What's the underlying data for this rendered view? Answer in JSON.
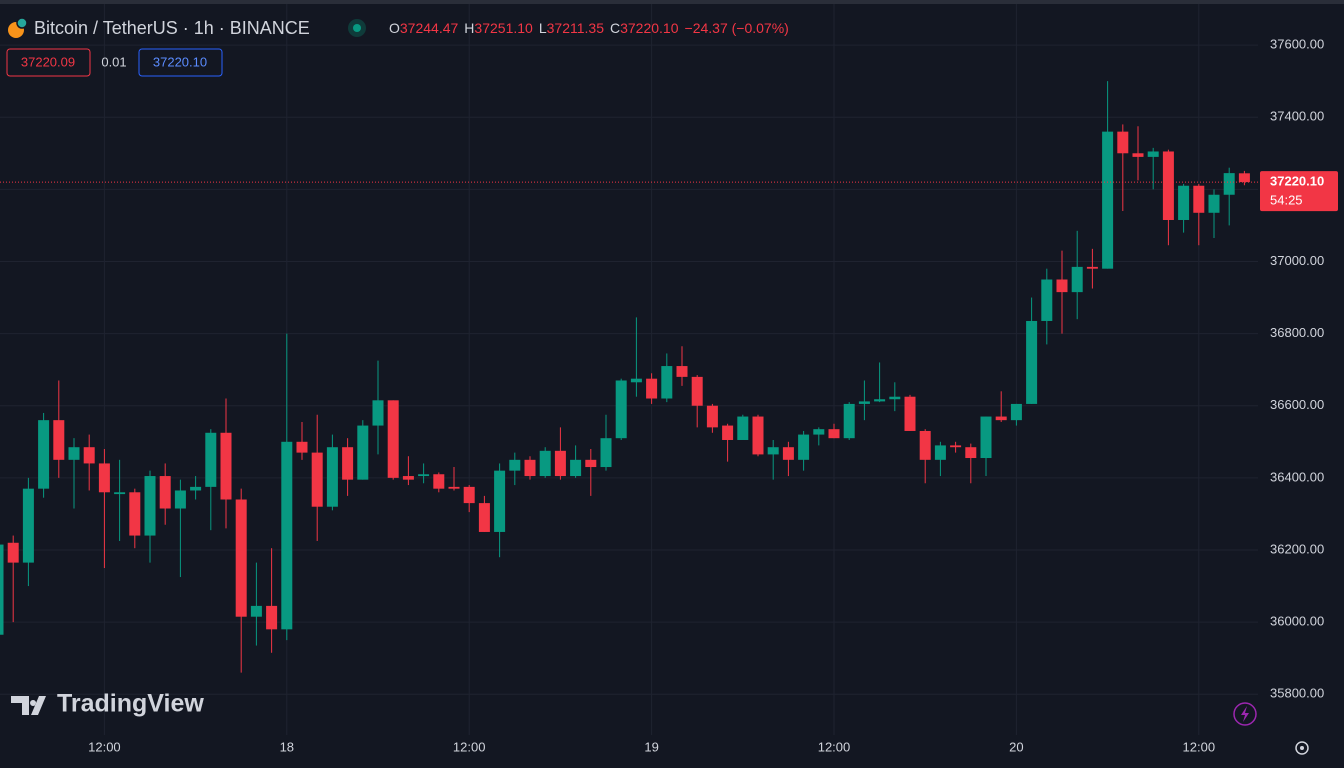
{
  "header": {
    "symbol": "Bitcoin / TetherUS · 1h · BINANCE",
    "ohlc": [
      {
        "label": "O",
        "value": "37244.47"
      },
      {
        "label": "H",
        "value": "37251.10"
      },
      {
        "label": "L",
        "value": "37211.35"
      },
      {
        "label": "C",
        "value": "37220.10"
      }
    ],
    "change": "−24.37 (−0.07%)"
  },
  "spread": {
    "bid": "37220.09",
    "spread": "0.01",
    "ask": "37220.10"
  },
  "watermark": "TradingView",
  "chart_data": {
    "type": "candlestick",
    "up_color": "#089981",
    "down_color": "#f23645",
    "categories": [
      null,
      null,
      null,
      null,
      null,
      null,
      null,
      "12:00",
      null,
      null,
      null,
      null,
      null,
      null,
      null,
      null,
      null,
      null,
      null,
      "18",
      null,
      null,
      null,
      null,
      null,
      null,
      null,
      null,
      null,
      null,
      null,
      "12:00",
      null,
      null,
      null,
      null,
      null,
      null,
      null,
      null,
      null,
      null,
      null,
      "19",
      null,
      null,
      null,
      null,
      null,
      null,
      null,
      null,
      null,
      null,
      null,
      "12:00",
      null,
      null,
      null,
      null,
      null,
      null,
      null,
      null,
      null,
      null,
      null,
      "20",
      null,
      null,
      null,
      null,
      null,
      null,
      null,
      null,
      null,
      null,
      null,
      "12:00",
      null,
      null,
      null
    ],
    "open": [
      35965,
      36220,
      36165,
      36370,
      36560,
      36450,
      36485,
      36440,
      36355,
      36360,
      36240,
      36405,
      36315,
      36365,
      36375,
      36525,
      36340,
      36015,
      36045,
      35980,
      36500,
      36470,
      36320,
      36485,
      36395,
      36545,
      36615,
      36405,
      36405,
      36410,
      36375,
      36375,
      36330,
      36250,
      36420,
      36450,
      36405,
      36475,
      36405,
      36450,
      36430,
      36510,
      36665,
      36675,
      36620,
      36710,
      36680,
      36600,
      36545,
      36505,
      36570,
      36465,
      36485,
      36450,
      36520,
      36535,
      36510,
      36605,
      36612,
      36618,
      36625,
      36530,
      36450,
      36490,
      36485,
      36455,
      36570,
      36560,
      36605,
      36835,
      36950,
      36915,
      36985,
      36980,
      37360,
      37300,
      37290,
      37305,
      37115,
      37210,
      37135,
      37185,
      37244.47
    ],
    "high": [
      36230,
      36240,
      36400,
      36580,
      36670,
      36510,
      36520,
      36480,
      36450,
      36370,
      36420,
      36440,
      36395,
      36405,
      36535,
      36620,
      36370,
      36165,
      36205,
      36800,
      36555,
      36575,
      36520,
      36510,
      36560,
      36725,
      36615,
      36460,
      36440,
      36415,
      36430,
      36380,
      36350,
      36440,
      36470,
      36460,
      36485,
      36540,
      36490,
      36480,
      36575,
      36675,
      36845,
      36690,
      36745,
      36765,
      36685,
      36605,
      36550,
      36575,
      36575,
      36505,
      36500,
      36530,
      36540,
      36550,
      36610,
      36670,
      36720,
      36665,
      36630,
      36535,
      36500,
      36500,
      36495,
      36570,
      36640,
      36605,
      36900,
      36980,
      37030,
      37085,
      37035,
      37500,
      37380,
      37375,
      37315,
      37310,
      37215,
      37215,
      37200,
      37260,
      37251.1
    ],
    "low": [
      35950,
      36000,
      36100,
      36345,
      36400,
      36315,
      36365,
      36150,
      36225,
      36205,
      36165,
      36270,
      36125,
      36340,
      36255,
      36260,
      35860,
      35935,
      35915,
      35950,
      36450,
      36225,
      36310,
      36350,
      36395,
      36465,
      36395,
      36380,
      36385,
      36360,
      36365,
      36305,
      36250,
      36180,
      36380,
      36395,
      36400,
      36395,
      36400,
      36350,
      36420,
      36505,
      36625,
      36605,
      36610,
      36655,
      36540,
      36525,
      36445,
      36505,
      36460,
      36395,
      36405,
      36420,
      36490,
      36510,
      36505,
      36560,
      36610,
      36585,
      36530,
      36385,
      36405,
      36470,
      36385,
      36405,
      36555,
      36545,
      36605,
      36770,
      36800,
      36840,
      36925,
      36980,
      37140,
      37225,
      37200,
      37045,
      37080,
      37045,
      37065,
      37100,
      37211.35
    ],
    "close": [
      36215,
      36165,
      36370,
      36560,
      36450,
      36485,
      36440,
      36360,
      36360,
      36240,
      36405,
      36315,
      36365,
      36375,
      36525,
      36340,
      36015,
      36045,
      35980,
      36500,
      36470,
      36320,
      36485,
      36395,
      36545,
      36615,
      36400,
      36395,
      36410,
      36370,
      36370,
      36330,
      36250,
      36420,
      36450,
      36405,
      36475,
      36405,
      36450,
      36430,
      36510,
      36670,
      36675,
      36620,
      36710,
      36680,
      36600,
      36540,
      36505,
      36570,
      36465,
      36485,
      36450,
      36520,
      36535,
      36510,
      36605,
      36612,
      36618,
      36625,
      36530,
      36450,
      36490,
      36485,
      36455,
      36570,
      36560,
      36605,
      36835,
      36950,
      36915,
      36985,
      36980,
      37360,
      37300,
      37290,
      37305,
      37115,
      37210,
      37135,
      37185,
      37245,
      37220.1
    ],
    "ylim": [
      35687,
      37725
    ],
    "yticks": [
      {
        "value": 35800,
        "label": "35800.00"
      },
      {
        "value": 36000,
        "label": "36000.00"
      },
      {
        "value": 36200,
        "label": "36200.00"
      },
      {
        "value": 36400,
        "label": "36400.00"
      },
      {
        "value": 36600,
        "label": "36600.00"
      },
      {
        "value": 36800,
        "label": "36800.00"
      },
      {
        "value": 37000,
        "label": "37000.00"
      },
      {
        "value": 37200,
        "label": "37200.00"
      },
      {
        "value": 37400,
        "label": "37400.00"
      },
      {
        "value": 37600,
        "label": "37600.00"
      }
    ],
    "grid": true,
    "price_tag": {
      "value": 37220.1,
      "label": "37220.10",
      "countdown": "54:25"
    }
  }
}
